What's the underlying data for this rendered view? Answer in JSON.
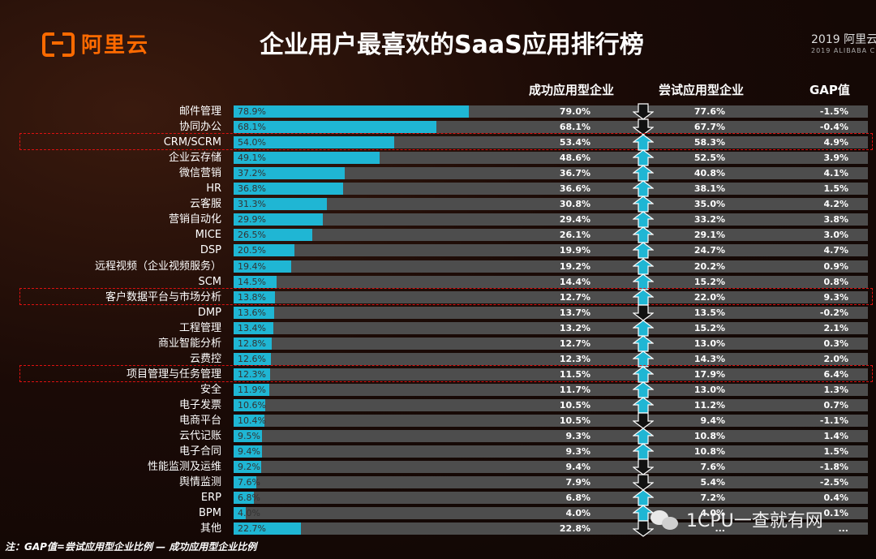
{
  "logo": {
    "text": "阿里云"
  },
  "title": "企业用户最喜欢的SaaS应用排行榜",
  "corner": {
    "year_text": "2019 阿里云",
    "sub_text": "2019 ALIBABA C"
  },
  "columns": {
    "success": "成功应用型企业",
    "trial": "尝试应用型企业",
    "gap": "GAP值"
  },
  "colors": {
    "bar": "#1fb6d4",
    "track": "#4d4d4d",
    "arrow_up": "#1fb6d4",
    "arrow_down": "#111111",
    "highlight": "#dd1111",
    "logo": "#ff6a00"
  },
  "chart_data": {
    "type": "bar",
    "orientation": "horizontal",
    "title": "企业用户最喜欢的SaaS应用排行榜",
    "categories": [
      "邮件管理",
      "协同办公",
      "CRM/SCRM",
      "企业云存储",
      "微信营销",
      "HR",
      "云客服",
      "营销自动化",
      "MICE",
      "DSP",
      "远程视频（企业视频服务）",
      "SCM",
      "客户数据平台与市场分析",
      "DMP",
      "工程管理",
      "商业智能分析",
      "云费控",
      "项目管理与任务管理",
      "安全",
      "电子发票",
      "电商平台",
      "云代记账",
      "电子合同",
      "性能监测及运维",
      "舆情监测",
      "ERP",
      "BPM",
      "其他"
    ],
    "series": [
      {
        "values": [
          "78.9%",
          "68.1%",
          "54.0%",
          "49.1%",
          "37.2%",
          "36.8%",
          "31.3%",
          "29.9%",
          "26.5%",
          "20.5%",
          "19.4%",
          "14.5%",
          "13.8%",
          "13.6%",
          "13.4%",
          "12.8%",
          "12.6%",
          "12.3%",
          "11.9%",
          "10.6%",
          "10.4%",
          "9.5%",
          "9.4%",
          "9.2%",
          "7.6%",
          "6.8%",
          "4.0%",
          "22.7%"
        ]
      },
      {
        "name": "成功应用型企业",
        "values": [
          "79.0%",
          "68.1%",
          "53.4%",
          "48.6%",
          "36.7%",
          "36.6%",
          "30.8%",
          "29.4%",
          "26.1%",
          "19.9%",
          "19.2%",
          "14.4%",
          "12.7%",
          "13.7%",
          "13.2%",
          "12.7%",
          "12.3%",
          "11.5%",
          "11.7%",
          "10.5%",
          "10.5%",
          "9.3%",
          "9.3%",
          "9.4%",
          "7.9%",
          "6.8%",
          "4.0%",
          "22.8%"
        ]
      },
      {
        "name": "尝试应用型企业",
        "values": [
          "77.6%",
          "67.7%",
          "58.3%",
          "52.5%",
          "40.8%",
          "38.1%",
          "35.0%",
          "33.2%",
          "29.1%",
          "24.7%",
          "20.2%",
          "15.2%",
          "22.0%",
          "13.5%",
          "15.2%",
          "13.0%",
          "14.3%",
          "17.9%",
          "13.0%",
          "11.2%",
          "9.4%",
          "10.8%",
          "10.8%",
          "7.6%",
          "5.4%",
          "7.2%",
          "4.0%",
          "..."
        ]
      },
      {
        "name": "GAP值",
        "values": [
          "-1.5%",
          "-0.4%",
          "4.9%",
          "3.9%",
          "4.1%",
          "1.5%",
          "4.2%",
          "3.8%",
          "3.0%",
          "4.7%",
          "0.9%",
          "0.8%",
          "9.3%",
          "-0.2%",
          "2.1%",
          "0.3%",
          "2.0%",
          "6.4%",
          "1.3%",
          "0.7%",
          "-1.1%",
          "1.4%",
          "1.5%",
          "-1.8%",
          "-2.5%",
          "0.4%",
          "0.1%",
          "..."
        ]
      }
    ],
    "arrows": [
      "down",
      "down",
      "up",
      "up",
      "up",
      "up",
      "up",
      "up",
      "up",
      "up",
      "up",
      "up",
      "up",
      "down",
      "up",
      "up",
      "up",
      "up",
      "up",
      "up",
      "down",
      "up",
      "up",
      "down",
      "down",
      "up",
      "up",
      "down"
    ],
    "highlighted": [
      "CRM/SCRM",
      "客户数据平台与市场分析",
      "项目管理与任务管理"
    ],
    "xlim": [
      0,
      100
    ]
  },
  "note": "注：GAP值=尝试应用型企业比例 — 成功应用型企业比例",
  "watermark": {
    "text": "1CPU一查就有网"
  }
}
